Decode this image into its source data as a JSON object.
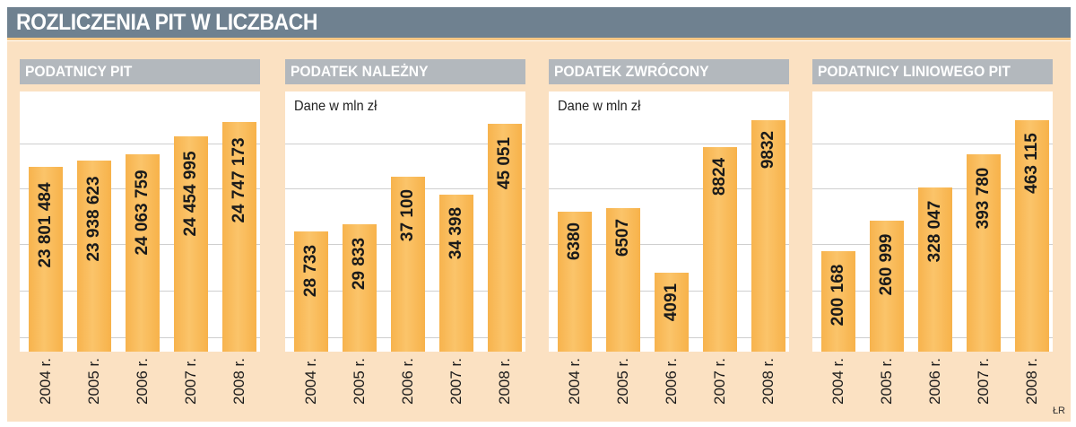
{
  "title": "ROZLICZENIA PIT W LICZBACH",
  "credit": "ŁR",
  "colors": {
    "title_bg": "#6f8190",
    "panel_bg": "#fbe1c2",
    "bar": "#f7b34d",
    "panel_head": "#b3b8bd"
  },
  "chart_data": [
    {
      "type": "bar",
      "title": "PODATNICY PIT",
      "unit_label": "",
      "categories": [
        "2004 r.",
        "2005 r.",
        "2006 r.",
        "2007 r.",
        "2008 r."
      ],
      "values": [
        23801484,
        23938623,
        24063759,
        24454995,
        24747173
      ],
      "value_labels": [
        "23 801 484",
        "23 938 623",
        "24 063 759",
        "24 454 995",
        "24 747 173"
      ],
      "ylim": [
        19900000,
        25400000
      ]
    },
    {
      "type": "bar",
      "title": "PODATEK NALEŻNY",
      "unit_label": "Dane w mln zł",
      "categories": [
        "2004 r.",
        "2005 r.",
        "2006 r.",
        "2007 r.",
        "2008 r."
      ],
      "values": [
        28733,
        29833,
        37100,
        34398,
        45051
      ],
      "value_labels": [
        "28 733",
        "29 833",
        "37 100",
        "34 398",
        "45 051"
      ],
      "ylim": [
        10500,
        50000
      ]
    },
    {
      "type": "bar",
      "title": "PODATEK ZWRÓCONY",
      "unit_label": "Dane w mln zł",
      "categories": [
        "2004 r.",
        "2005 r.",
        "2006 r.",
        "2007 r.",
        "2008 r."
      ],
      "values": [
        6380,
        6507,
        4091,
        8824,
        9832
      ],
      "value_labels": [
        "6380",
        "6507",
        "4091",
        "8824",
        "9832"
      ],
      "ylim": [
        1130,
        10900
      ]
    },
    {
      "type": "bar",
      "title": "PODATNICY LINIOWEGO PIT",
      "unit_label": "",
      "categories": [
        "2004 r.",
        "2005 r.",
        "2006 r.",
        "2007 r.",
        "2008 r."
      ],
      "values": [
        200168,
        260999,
        328047,
        393780,
        463115
      ],
      "value_labels": [
        "200 168",
        "260 999",
        "328 047",
        "393 780",
        "463 115"
      ],
      "ylim": [
        0,
        520000
      ]
    }
  ]
}
